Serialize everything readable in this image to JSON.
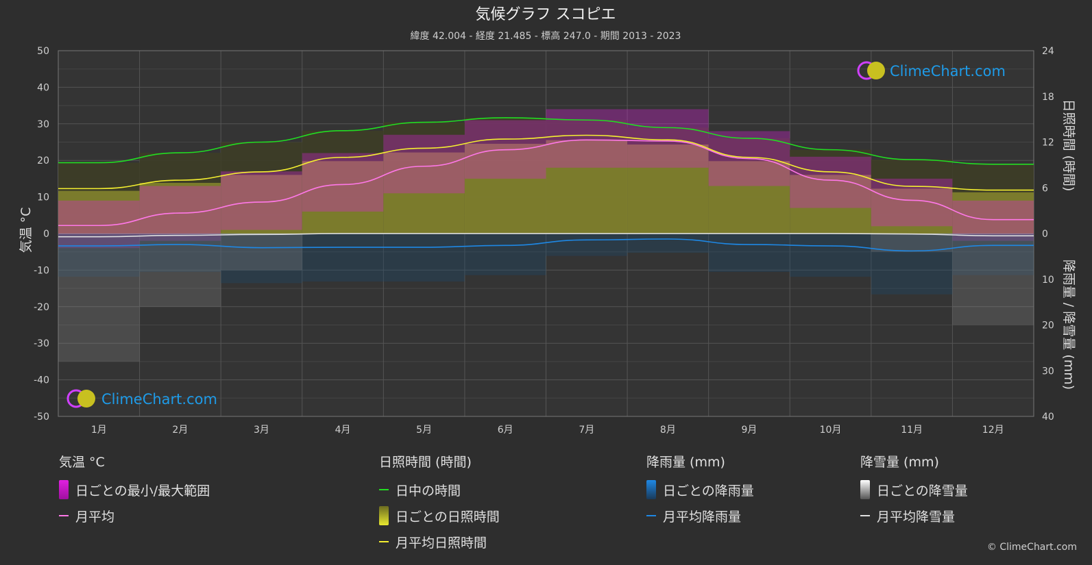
{
  "header": {
    "title": "気候グラフ スコピエ",
    "subtitle": "緯度 42.004 - 経度 21.485 - 標高 247.0 - 期間 2013 - 2023"
  },
  "axes": {
    "left_label": "気温 °C",
    "right_top_label": "日照時間 (時間)",
    "right_bottom_label": "降雨量 / 降雪量 (mm)",
    "left_ticks": [
      "50",
      "40",
      "30",
      "20",
      "10",
      "0",
      "-10",
      "-20",
      "-30",
      "-40",
      "-50"
    ],
    "right_top_ticks": [
      "24",
      "18",
      "12",
      "6",
      "0"
    ],
    "right_bottom_ticks": [
      "10",
      "20",
      "30",
      "40"
    ],
    "months": [
      "1月",
      "2月",
      "3月",
      "4月",
      "5月",
      "6月",
      "7月",
      "8月",
      "9月",
      "10月",
      "11月",
      "12月"
    ]
  },
  "watermark": {
    "text": "ClimeChart.com"
  },
  "legend": {
    "temp": {
      "title": "気温 °C",
      "range": "日ごとの最小/最大範囲",
      "avg": "月平均"
    },
    "sun": {
      "title": "日照時間 (時間)",
      "daylight": "日中の時間",
      "daily": "日ごとの日照時間",
      "avg": "月平均日照時間"
    },
    "rain": {
      "title": "降雨量 (mm)",
      "daily": "日ごとの降雨量",
      "avg": "月平均降雨量"
    },
    "snow": {
      "title": "降雪量 (mm)",
      "daily": "日ごとの降雪量",
      "avg": "月平均降雪量"
    }
  },
  "copyright": "© ClimeChart.com",
  "colors": {
    "background": "#2e2e2e",
    "temp_range": "#e020e0",
    "temp_avg": "#ff78e8",
    "daylight": "#22dd22",
    "sunshine": "#c8c832",
    "sunshine_avg": "#f5f030",
    "rain": "#1e88e5",
    "snow": "#e0e0e0",
    "brand": "#1e9be8"
  },
  "chart_data": {
    "type": "line",
    "categories": [
      "1月",
      "2月",
      "3月",
      "4月",
      "5月",
      "6月",
      "7月",
      "8月",
      "9月",
      "10月",
      "11月",
      "12月"
    ],
    "temp_range": [
      -50,
      50
    ],
    "sunshine_range": [
      0,
      24
    ],
    "precip_range": [
      0,
      40
    ],
    "series": [
      {
        "name": "月平均",
        "unit": "°C",
        "axis": "temperature",
        "values": [
          2.2,
          5.6,
          8.6,
          13.4,
          18.4,
          22.9,
          25.6,
          25.3,
          20.5,
          14.6,
          9.1,
          3.8
        ]
      },
      {
        "name": "日中の時間",
        "unit": "時間",
        "axis": "sunshine",
        "values": [
          9.3,
          10.6,
          12.0,
          13.5,
          14.6,
          15.2,
          14.9,
          13.9,
          12.5,
          11.0,
          9.7,
          9.1
        ]
      },
      {
        "name": "月平均日照時間",
        "unit": "時間",
        "axis": "sunshine",
        "values": [
          5.9,
          7.0,
          8.1,
          10.0,
          11.2,
          12.4,
          12.9,
          12.3,
          10.0,
          8.1,
          6.2,
          5.7
        ]
      },
      {
        "name": "月平均降雨量",
        "unit": "mm",
        "axis": "precipitation",
        "values": [
          2.7,
          2.4,
          3.1,
          3.0,
          3.0,
          2.6,
          1.4,
          1.2,
          2.4,
          2.7,
          3.8,
          2.6
        ]
      },
      {
        "name": "月平均降雪量",
        "unit": "mm",
        "axis": "precipitation",
        "values": [
          0.7,
          0.4,
          0.2,
          0.0,
          0.0,
          0.0,
          0.0,
          0.0,
          0.0,
          0.0,
          0.1,
          0.5
        ]
      }
    ],
    "daily_temp_band": {
      "min": [
        -4,
        -2,
        1,
        6,
        11,
        15,
        18,
        18,
        13,
        7,
        2,
        -2
      ],
      "max": [
        9,
        13,
        17,
        22,
        27,
        31,
        34,
        34,
        28,
        21,
        15,
        9
      ]
    }
  }
}
